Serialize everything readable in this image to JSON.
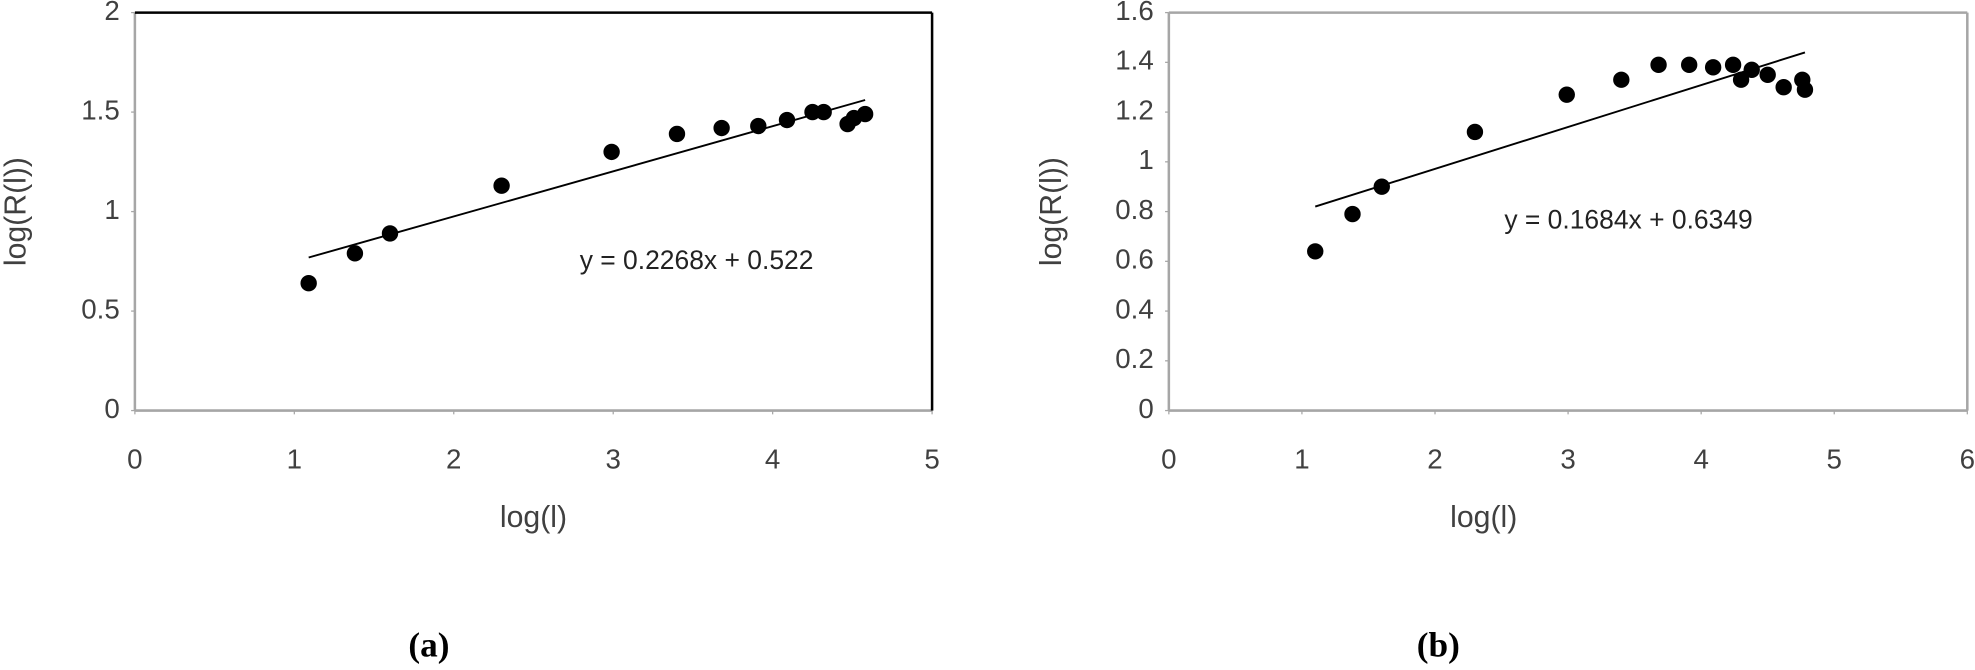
{
  "chart_data": [
    {
      "type": "scatter",
      "caption": "(a)",
      "x_label": "log(l)",
      "y_label": "log(R(l))",
      "x": [
        1.09,
        1.38,
        1.6,
        2.3,
        2.99,
        3.4,
        3.68,
        3.91,
        4.09,
        4.25,
        4.32,
        4.47,
        4.51,
        4.58
      ],
      "series": [
        {
          "color": "#000000",
          "values": [
            0.64,
            0.79,
            0.89,
            1.13,
            1.3,
            1.39,
            1.42,
            1.43,
            1.46,
            1.5,
            1.5,
            1.44,
            1.47,
            1.49
          ]
        }
      ],
      "trendline": {
        "slope": 0.2268,
        "intercept": 0.522,
        "label": "y = 0.2268x + 0.522",
        "color": "#000000"
      },
      "xlim": [
        0,
        5
      ],
      "xticks": [
        0,
        1,
        2,
        3,
        4,
        5
      ],
      "ylim": [
        0,
        2
      ],
      "yticks": [
        0,
        0.5,
        1,
        1.5,
        2
      ]
    },
    {
      "type": "scatter",
      "caption": "(b)",
      "x_label": "log(l)",
      "y_label": "log(R(l))",
      "x": [
        1.1,
        1.38,
        1.6,
        2.3,
        2.99,
        3.4,
        3.68,
        3.91,
        4.09,
        4.24,
        4.3,
        4.38,
        4.5,
        4.62,
        4.76,
        4.78
      ],
      "series": [
        {
          "color": "#000000",
          "values": [
            0.64,
            0.79,
            0.9,
            1.12,
            1.27,
            1.33,
            1.39,
            1.39,
            1.38,
            1.39,
            1.33,
            1.37,
            1.35,
            1.3,
            1.33,
            1.29
          ]
        }
      ],
      "trendline": {
        "slope": 0.1684,
        "intercept": 0.6349,
        "label": "y = 0.1684x + 0.6349",
        "color": "#000000"
      },
      "xlim": [
        0,
        6
      ],
      "xticks": [
        0,
        1,
        2,
        3,
        4,
        5,
        6
      ],
      "ylim": [
        0,
        1.6
      ],
      "yticks": [
        0,
        0.2,
        0.4,
        0.6,
        0.8,
        1,
        1.2,
        1.4,
        1.6
      ]
    }
  ]
}
